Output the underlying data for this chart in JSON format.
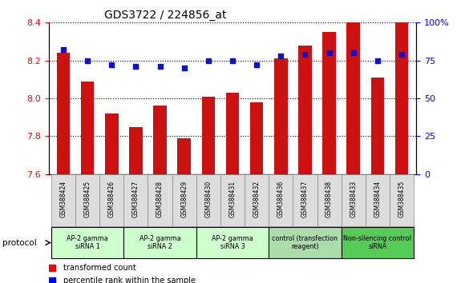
{
  "title": "GDS3722 / 224856_at",
  "samples": [
    "GSM388424",
    "GSM388425",
    "GSM388426",
    "GSM388427",
    "GSM388428",
    "GSM388429",
    "GSM388430",
    "GSM388431",
    "GSM388432",
    "GSM388436",
    "GSM388437",
    "GSM388438",
    "GSM388433",
    "GSM388434",
    "GSM388435"
  ],
  "transformed_count": [
    8.24,
    8.09,
    7.92,
    7.85,
    7.96,
    7.79,
    8.01,
    8.03,
    7.98,
    8.21,
    8.28,
    8.35,
    8.4,
    8.11,
    8.4
  ],
  "percentile_rank": [
    82,
    75,
    72,
    71,
    71,
    70,
    75,
    75,
    72,
    78,
    79,
    80,
    80,
    75,
    79
  ],
  "ylim_left": [
    7.6,
    8.4
  ],
  "ylim_right": [
    0,
    100
  ],
  "yticks_left": [
    7.6,
    7.8,
    8.0,
    8.2,
    8.4
  ],
  "yticks_right": [
    0,
    25,
    50,
    75,
    100
  ],
  "bar_color": "#cc1111",
  "dot_color": "#1111cc",
  "groups": [
    {
      "label": "AP-2 gamma\nsiRNA 1",
      "indices": [
        0,
        1,
        2
      ],
      "color": "#ccffcc"
    },
    {
      "label": "AP-2 gamma\nsiRNA 2",
      "indices": [
        3,
        4,
        5
      ],
      "color": "#ccffcc"
    },
    {
      "label": "AP-2 gamma\nsiRNA 3",
      "indices": [
        6,
        7,
        8
      ],
      "color": "#ccffcc"
    },
    {
      "label": "control (transfection\nreagent)",
      "indices": [
        9,
        10,
        11
      ],
      "color": "#aaddaa"
    },
    {
      "label": "Non-silencing control\nsiRNA",
      "indices": [
        12,
        13,
        14
      ],
      "color": "#55cc55"
    }
  ],
  "legend_transformed": "transformed count",
  "legend_percentile": "percentile rank within the sample",
  "protocol_label": "protocol"
}
